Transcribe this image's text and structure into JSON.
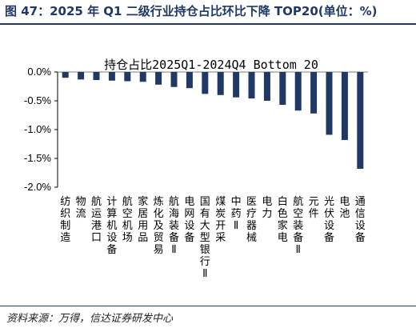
{
  "header": {
    "title": "图 47：2025 年 Q1 二级行业持仓占比环比下降 TOP20(单位：%)"
  },
  "source": "资料来源：万得，信达证券研发中心",
  "colors": {
    "bar": "#1f3864",
    "header": "#1f3864"
  },
  "chart_data": {
    "type": "bar",
    "title": "持仓占比2025Q1-2024Q4 Bottom 20",
    "xlabel": "",
    "ylabel": "",
    "ylim": [
      -2.0,
      0.0
    ],
    "yticks": [
      0.0,
      -0.5,
      -1.0,
      -1.5,
      -2.0
    ],
    "ytick_labels": [
      "0.0%",
      "-0.5%",
      "-1.0%",
      "-1.5%",
      "-2.0%"
    ],
    "grid": false,
    "categories": [
      "纺织制造",
      "物流",
      "航运港口",
      "计算机设备",
      "航空机场",
      "家居用品",
      "炼化及贸易",
      "航海装备Ⅱ",
      "电网设备",
      "国有大型银行Ⅱ",
      "煤炭开采",
      "中药Ⅱ",
      "医疗器械",
      "电力",
      "白色家电",
      "航空装备Ⅱ",
      "元件",
      "光伏设备",
      "电池",
      "通信设备"
    ],
    "values": [
      -0.1,
      -0.13,
      -0.14,
      -0.15,
      -0.16,
      -0.17,
      -0.22,
      -0.26,
      -0.28,
      -0.38,
      -0.4,
      -0.44,
      -0.46,
      -0.5,
      -0.57,
      -0.67,
      -0.72,
      -1.09,
      -1.18,
      -1.68
    ]
  }
}
